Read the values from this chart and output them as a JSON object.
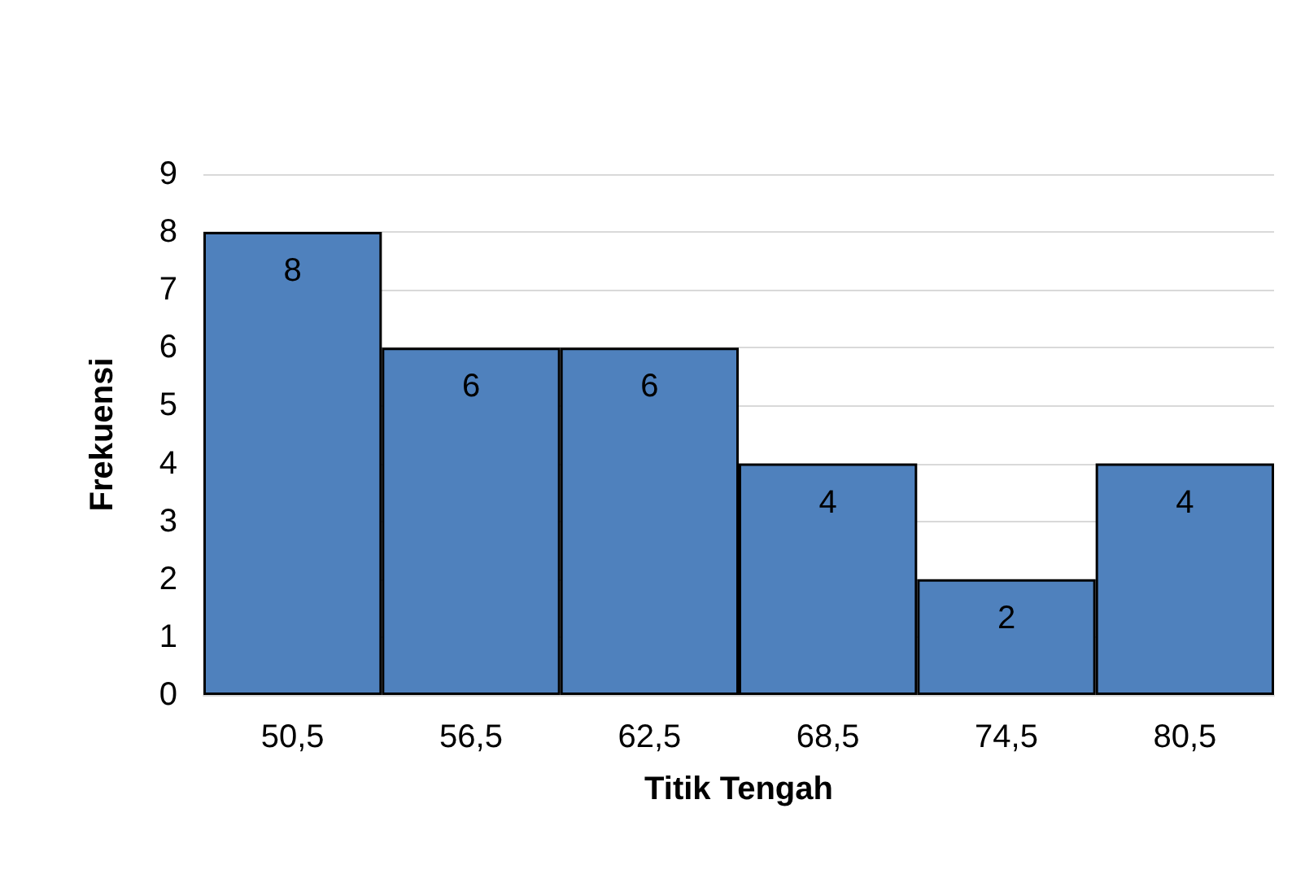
{
  "chart_data": {
    "type": "bar",
    "xlabel": "Titik Tengah",
    "ylabel": "Frekuensi",
    "categories": [
      "50,5",
      "56,5",
      "62,5",
      "68,5",
      "74,5",
      "80,5"
    ],
    "series": [
      {
        "color": "#4f81bd",
        "values": [
          8,
          6,
          6,
          4,
          2,
          4
        ]
      }
    ],
    "ylim": [
      0,
      9
    ],
    "yticks": [
      0,
      1,
      2,
      3,
      4,
      5,
      6,
      7,
      8,
      9
    ],
    "grid": "y",
    "data_labels": true
  }
}
